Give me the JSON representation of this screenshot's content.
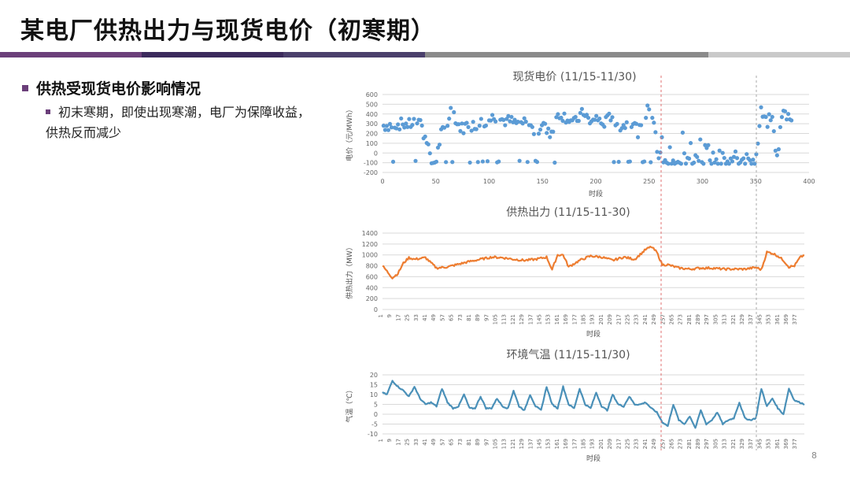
{
  "slide": {
    "title": "某电厂供热出力与现货电价（初寒期）",
    "bullet_main": "供热受现货电价影响情况",
    "bullet_sub": "初末寒期，即使出现寒潮，电厂为保障收益，供热反而减少",
    "page_number": "8",
    "accent_colors": [
      "#6b3f7a",
      "#3b2a5c",
      "#8a8a8a",
      "#c9c9c9"
    ]
  },
  "chart_data": [
    {
      "type": "scatter",
      "title": "现货电价 (11/15-11/30)",
      "xlabel": "时段",
      "ylabel": "电价（元/MWh）",
      "xlim": [
        0,
        400
      ],
      "ylim": [
        -200,
        600
      ],
      "xticks": [
        "0",
        "50",
        "100",
        "150",
        "200",
        "250",
        "300",
        "350",
        "400"
      ],
      "yticks": [
        "600",
        "500",
        "400",
        "300",
        "200",
        "100",
        "0",
        "-100",
        "-200"
      ],
      "color": "#5b9bd5",
      "grid": true,
      "anchors_x": [
        0,
        10,
        20,
        25,
        30,
        35,
        38,
        42,
        45,
        50,
        55,
        60,
        65,
        70,
        75,
        80,
        85,
        90,
        95,
        100,
        105,
        110,
        115,
        120,
        125,
        130,
        135,
        140,
        145,
        150,
        155,
        160,
        165,
        170,
        175,
        180,
        185,
        190,
        195,
        200,
        205,
        210,
        215,
        220,
        225,
        230,
        235,
        240,
        245,
        250,
        255,
        258,
        262,
        270,
        280,
        290,
        300,
        310,
        320,
        330,
        340,
        345,
        350,
        355,
        360,
        365,
        370,
        375,
        380
      ],
      "anchors_y": [
        280,
        290,
        300,
        290,
        320,
        350,
        200,
        150,
        -100,
        -90,
        200,
        250,
        480,
        300,
        250,
        300,
        280,
        310,
        320,
        340,
        380,
        350,
        330,
        330,
        300,
        310,
        330,
        250,
        200,
        320,
        200,
        230,
        410,
        380,
        350,
        300,
        380,
        420,
        280,
        380,
        300,
        320,
        400,
        260,
        280,
        300,
        320,
        210,
        300,
        490,
        350,
        -60,
        -90,
        -100,
        -100,
        -90,
        -100,
        -100,
        -90,
        -100,
        -60,
        -80,
        -90,
        420,
        300,
        380,
        -60,
        420,
        380
      ]
    },
    {
      "type": "line",
      "title": "供热出力 (11/15-11-30)",
      "xlabel": "时段",
      "ylabel": "供热出力（MW）",
      "xlim": [
        1,
        384
      ],
      "ylim": [
        0,
        1400
      ],
      "yticks": [
        "1400",
        "1200",
        "1000",
        "800",
        "600",
        "400",
        "200",
        "0"
      ],
      "xticks": [
        "1",
        "9",
        "17",
        "25",
        "33",
        "41",
        "49",
        "57",
        "65",
        "73",
        "81",
        "89",
        "97",
        "105",
        "113",
        "121",
        "129",
        "137",
        "145",
        "153",
        "161",
        "169",
        "177",
        "185",
        "193",
        "201",
        "209",
        "217",
        "225",
        "233",
        "241",
        "249",
        "257",
        "265",
        "273",
        "281",
        "289",
        "297",
        "305",
        "313",
        "321",
        "329",
        "337",
        "345",
        "353",
        "361",
        "369",
        "377"
      ],
      "color": "#ed7d31",
      "grid": true,
      "anchors_x": [
        1,
        10,
        15,
        20,
        25,
        30,
        40,
        50,
        60,
        70,
        80,
        90,
        100,
        110,
        120,
        130,
        140,
        150,
        155,
        160,
        165,
        170,
        180,
        190,
        200,
        210,
        220,
        230,
        240,
        245,
        250,
        255,
        260,
        270,
        280,
        290,
        300,
        310,
        320,
        330,
        340,
        345,
        350,
        355,
        360,
        365,
        370,
        375,
        380,
        384
      ],
      "anchors_y": [
        800,
        580,
        660,
        850,
        950,
        920,
        950,
        760,
        780,
        830,
        880,
        920,
        960,
        950,
        920,
        900,
        920,
        960,
        730,
        1000,
        1000,
        780,
        900,
        980,
        960,
        900,
        960,
        920,
        1100,
        1150,
        1050,
        820,
        820,
        760,
        740,
        760,
        760,
        740,
        740,
        740,
        770,
        730,
        1050,
        1030,
        980,
        900,
        780,
        800,
        950,
        1000
      ]
    },
    {
      "type": "line",
      "title": "环境气温 (11/15-11/30)",
      "xlabel": "时段",
      "ylabel": "气温（℃）",
      "xlim": [
        1,
        384
      ],
      "ylim": [
        -10,
        20
      ],
      "yticks": [
        "20",
        "15",
        "10",
        "5",
        "0",
        "-5",
        "-10"
      ],
      "xticks": [
        "1",
        "9",
        "17",
        "25",
        "33",
        "41",
        "49",
        "57",
        "65",
        "73",
        "81",
        "89",
        "97",
        "105",
        "113",
        "121",
        "129",
        "137",
        "145",
        "153",
        "161",
        "169",
        "177",
        "185",
        "193",
        "201",
        "209",
        "217",
        "225",
        "233",
        "241",
        "249",
        "257",
        "265",
        "273",
        "281",
        "289",
        "297",
        "305",
        "313",
        "321",
        "329",
        "337",
        "345",
        "353",
        "361",
        "369",
        "377"
      ],
      "color": "#4a90b8",
      "grid": true,
      "anchors_x": [
        1,
        5,
        10,
        15,
        20,
        25,
        30,
        35,
        40,
        45,
        50,
        55,
        60,
        65,
        70,
        75,
        80,
        85,
        90,
        95,
        100,
        105,
        110,
        115,
        120,
        125,
        130,
        135,
        140,
        145,
        150,
        155,
        160,
        165,
        170,
        175,
        180,
        185,
        190,
        195,
        200,
        205,
        210,
        215,
        220,
        225,
        230,
        235,
        240,
        245,
        250,
        255,
        260,
        265,
        270,
        275,
        280,
        285,
        290,
        295,
        300,
        305,
        310,
        315,
        320,
        325,
        330,
        335,
        340,
        345,
        350,
        355,
        360,
        365,
        370,
        375,
        380,
        384
      ],
      "anchors_y": [
        11,
        10,
        17,
        14,
        12,
        9,
        14,
        8,
        5,
        6,
        4,
        13,
        6,
        3,
        4,
        10,
        3,
        3,
        9,
        3,
        3,
        8,
        4,
        3,
        12,
        4,
        2,
        10,
        4,
        2,
        14,
        5,
        3,
        14,
        5,
        3,
        13,
        5,
        3,
        11,
        4,
        2,
        10,
        5,
        4,
        9,
        5,
        5,
        6,
        3,
        1,
        -4,
        -6,
        5,
        -3,
        -5,
        -1,
        -7,
        2,
        -5,
        -3,
        1,
        -5,
        -3,
        -2,
        6,
        -2,
        -3,
        -2,
        13,
        4,
        8,
        3,
        0,
        13,
        7,
        6,
        5
      ]
    }
  ]
}
